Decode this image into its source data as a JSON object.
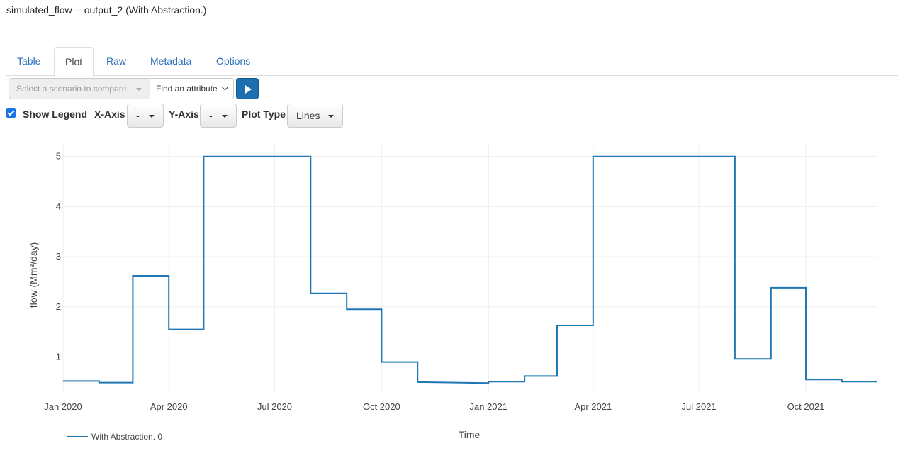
{
  "header": {
    "title": "simulated_flow -- output_2 (With Abstraction.)"
  },
  "tabs": [
    {
      "label": "Table"
    },
    {
      "label": "Plot"
    },
    {
      "label": "Raw"
    },
    {
      "label": "Metadata"
    },
    {
      "label": "Options"
    }
  ],
  "controls": {
    "scenario_placeholder": "Select a scenario to compare",
    "attribute_label": "Find an attribute",
    "show_legend_label": "Show Legend",
    "xaxis_label": "X-Axis",
    "xaxis_value": "-",
    "yaxis_label": "Y-Axis",
    "yaxis_value": "-",
    "plot_type_label": "Plot Type",
    "plot_type_value": "Lines"
  },
  "colors": {
    "series": "#1f77b4",
    "accent": "#1c6eae",
    "tab_link": "#2a6ebb"
  },
  "chart_data": {
    "type": "line",
    "title": "",
    "xlabel": "Time",
    "ylabel": "flow (Mm³/day)",
    "x_ticks": [
      "Jan 2020",
      "Apr 2020",
      "Jul 2020",
      "Oct 2020",
      "Jan 2021",
      "Apr 2021",
      "Jul 2021",
      "Oct 2021"
    ],
    "y_ticks": [
      1,
      2,
      3,
      4,
      5
    ],
    "ylim": [
      0.3,
      5.25
    ],
    "xlim": [
      "2020-01-01",
      "2021-12-01"
    ],
    "grid": true,
    "legend_position": "bottom-left",
    "series": [
      {
        "name": "With Abstraction. 0",
        "points": [
          [
            "2020-01-01",
            0.52
          ],
          [
            "2020-02-01",
            0.52
          ],
          [
            "2020-02-01",
            0.49
          ],
          [
            "2020-03-01",
            0.49
          ],
          [
            "2020-03-01",
            2.62
          ],
          [
            "2020-04-01",
            2.62
          ],
          [
            "2020-04-01",
            1.55
          ],
          [
            "2020-05-01",
            1.55
          ],
          [
            "2020-05-01",
            5.0
          ],
          [
            "2020-08-01",
            5.0
          ],
          [
            "2020-08-01",
            2.27
          ],
          [
            "2020-09-01",
            2.27
          ],
          [
            "2020-09-01",
            1.95
          ],
          [
            "2020-10-01",
            1.95
          ],
          [
            "2020-10-01",
            0.9
          ],
          [
            "2020-11-01",
            0.9
          ],
          [
            "2020-11-01",
            0.5
          ],
          [
            "2021-01-01",
            0.48
          ],
          [
            "2021-01-01",
            0.51
          ],
          [
            "2021-02-01",
            0.51
          ],
          [
            "2021-02-01",
            0.62
          ],
          [
            "2021-03-01",
            0.62
          ],
          [
            "2021-03-01",
            1.63
          ],
          [
            "2021-04-01",
            1.63
          ],
          [
            "2021-04-01",
            5.0
          ],
          [
            "2021-08-01",
            5.0
          ],
          [
            "2021-08-01",
            0.96
          ],
          [
            "2021-09-01",
            0.96
          ],
          [
            "2021-09-01",
            2.38
          ],
          [
            "2021-10-01",
            2.38
          ],
          [
            "2021-10-01",
            0.55
          ],
          [
            "2021-11-01",
            0.55
          ],
          [
            "2021-11-01",
            0.51
          ],
          [
            "2021-12-01",
            0.51
          ]
        ]
      }
    ]
  }
}
